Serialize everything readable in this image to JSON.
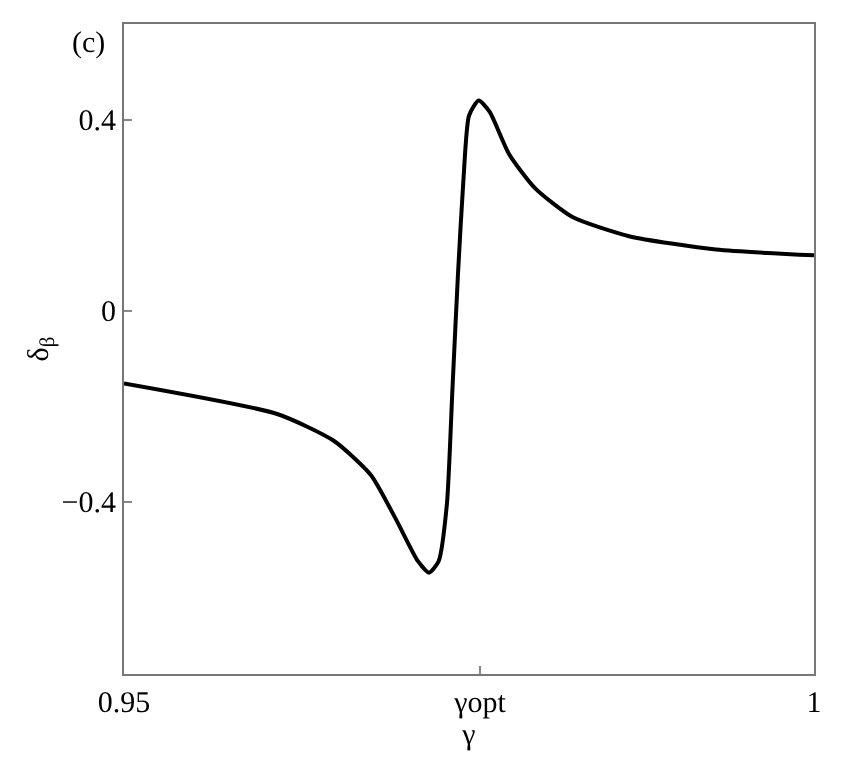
{
  "chart_data": {
    "type": "line",
    "xlabel": "γ",
    "ylabel": "δ$_{β}$",
    "annotations": [
      "(c)"
    ],
    "x": [
      0.95,
      0.9611,
      0.9652,
      0.9679,
      0.9697,
      0.9713,
      0.9721,
      0.9728,
      0.9734,
      0.9738,
      0.9742,
      0.9746,
      0.975,
      0.9757,
      0.9765,
      0.9779,
      0.9798,
      0.9825,
      0.9866,
      0.9929,
      1.0
    ],
    "series": [
      {
        "color": "#000000",
        "values": [
          -0.152,
          -0.216,
          -0.272,
          -0.344,
          -0.436,
          -0.524,
          -0.548,
          -0.524,
          -0.404,
          -0.164,
          0.076,
          0.276,
          0.408,
          0.44,
          0.416,
          0.328,
          0.256,
          0.196,
          0.156,
          0.128,
          0.116
        ]
      }
    ],
    "xlim": [
      0.95,
      1.0
    ],
    "ylim": [
      -0.76,
      0.6
    ],
    "xticks": [
      0.95,
      {
        "value": 0.9758,
        "label": "γopt"
      },
      1
    ],
    "yticks": [
      0.4,
      0,
      -0.4
    ],
    "legend": false,
    "marker": "none",
    "line_style": "solid"
  }
}
